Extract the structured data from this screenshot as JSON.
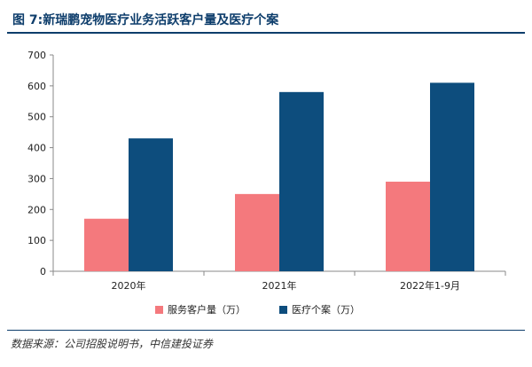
{
  "header": {
    "title": "图 7:新瑞鹏宠物医疗业务活跃客户量及医疗个案"
  },
  "footer": {
    "source": "数据来源：公司招股说明书，中信建投证券"
  },
  "colors": {
    "accent": "#0d3d6b",
    "series_1": "#f4797d",
    "series_2": "#0d4d7d"
  },
  "chart_data": {
    "type": "bar",
    "title": "",
    "xlabel": "",
    "ylabel": "",
    "categories": [
      "2020年",
      "2021年",
      "2022年1-9月"
    ],
    "series": [
      {
        "name": "服务客户量（万）",
        "values": [
          170,
          250,
          290
        ],
        "color": "#f4797d"
      },
      {
        "name": "医疗个案（万）",
        "values": [
          430,
          580,
          610
        ],
        "color": "#0d4d7d"
      }
    ],
    "ylim": [
      0,
      700
    ],
    "yticks": [
      0,
      100,
      200,
      300,
      400,
      500,
      600,
      700
    ],
    "grid": false,
    "legend_position": "bottom"
  }
}
